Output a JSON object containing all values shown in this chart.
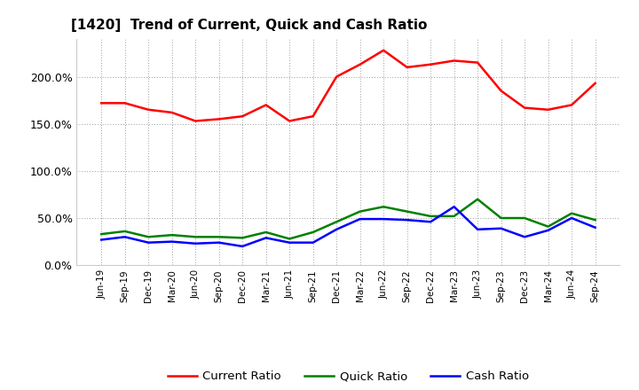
{
  "title": "[1420]  Trend of Current, Quick and Cash Ratio",
  "labels": [
    "Jun-19",
    "Sep-19",
    "Dec-19",
    "Mar-20",
    "Jun-20",
    "Sep-20",
    "Dec-20",
    "Mar-21",
    "Jun-21",
    "Sep-21",
    "Dec-21",
    "Mar-22",
    "Jun-22",
    "Sep-22",
    "Dec-22",
    "Mar-23",
    "Jun-23",
    "Sep-23",
    "Dec-23",
    "Mar-24",
    "Jun-24",
    "Sep-24"
  ],
  "current_ratio": [
    172,
    172,
    165,
    162,
    153,
    155,
    158,
    170,
    153,
    158,
    200,
    213,
    228,
    210,
    213,
    217,
    215,
    185,
    167,
    165,
    170,
    193
  ],
  "quick_ratio": [
    33,
    36,
    30,
    32,
    30,
    30,
    29,
    35,
    28,
    35,
    46,
    57,
    62,
    57,
    52,
    52,
    70,
    50,
    50,
    41,
    55,
    48
  ],
  "cash_ratio": [
    27,
    30,
    24,
    25,
    23,
    24,
    20,
    29,
    24,
    24,
    38,
    49,
    49,
    48,
    46,
    62,
    38,
    39,
    30,
    37,
    50,
    40
  ],
  "current_color": "#ff0000",
  "quick_color": "#008000",
  "cash_color": "#0000ff",
  "bg_color": "#ffffff",
  "plot_bg_color": "#ffffff",
  "grid_color": "#999999",
  "ylim": [
    0,
    240
  ],
  "yticks": [
    0,
    50,
    100,
    150,
    200
  ],
  "ytick_labels": [
    "0.0%",
    "50.0%",
    "100.0%",
    "150.0%",
    "200.0%"
  ],
  "legend_labels": [
    "Current Ratio",
    "Quick Ratio",
    "Cash Ratio"
  ],
  "line_width": 1.8
}
